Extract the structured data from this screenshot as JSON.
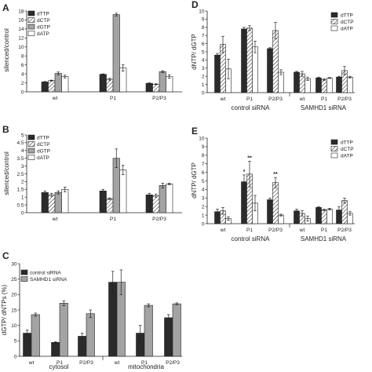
{
  "colors": {
    "dark": "#2b2b2b",
    "grey": "#a3a3a3",
    "white": "#ffffff",
    "stroke": "#222222"
  },
  "chart_data": [
    {
      "panel": "A",
      "type": "bar",
      "ylabel": "silenced/control",
      "categories": [
        "wt",
        "P1",
        "P2/P3"
      ],
      "ylim": [
        0,
        18
      ],
      "yticks": [
        0,
        2,
        4,
        6,
        8,
        10,
        12,
        14,
        16,
        18
      ],
      "legend_position": "top-left",
      "series": [
        {
          "name": "dTTP",
          "fill": "dark",
          "values": [
            2.2,
            3.9,
            1.9
          ],
          "errors": [
            0.1,
            0.1,
            0.1
          ]
        },
        {
          "name": "dCTP",
          "fill": "hatch",
          "values": [
            2.5,
            2.8,
            1.7
          ],
          "errors": [
            0.1,
            0.2,
            0.1
          ]
        },
        {
          "name": "dGTP",
          "fill": "grey",
          "values": [
            4.1,
            17.2,
            4.5
          ],
          "errors": [
            0.3,
            0.3,
            0.2
          ]
        },
        {
          "name": "dATP",
          "fill": "white",
          "values": [
            3.4,
            5.3,
            3.4
          ],
          "errors": [
            0.3,
            0.7,
            0.4
          ]
        }
      ]
    },
    {
      "panel": "B",
      "type": "bar",
      "ylabel": "silenced/control",
      "categories": [
        "wt",
        "P1",
        "P2/P3"
      ],
      "ylim": [
        0,
        5
      ],
      "yticks": [
        0,
        0.5,
        1,
        1.5,
        2,
        2.5,
        3,
        3.5,
        4,
        4.5,
        5
      ],
      "legend_position": "top-left",
      "series": [
        {
          "name": "dTTP",
          "fill": "dark",
          "values": [
            1.3,
            1.4,
            1.15
          ],
          "errors": [
            0.1,
            0.1,
            0.1
          ]
        },
        {
          "name": "dCTP",
          "fill": "hatch",
          "values": [
            1.15,
            0.9,
            1.1
          ],
          "errors": [
            0.1,
            0.05,
            0.1
          ]
        },
        {
          "name": "dGTP",
          "fill": "grey",
          "values": [
            1.3,
            3.5,
            1.75
          ],
          "errors": [
            0.1,
            0.6,
            0.15
          ]
        },
        {
          "name": "dATP",
          "fill": "white",
          "values": [
            1.5,
            2.75,
            1.85
          ],
          "errors": [
            0.15,
            0.3,
            0.05
          ]
        }
      ]
    },
    {
      "panel": "C",
      "type": "bar",
      "ylabel": "dGTP/ dNTPs (%)",
      "categories": [
        "wt",
        "P1",
        "P2/P3",
        "wt",
        "P1",
        "P2/P3"
      ],
      "groups": [
        "cytosol",
        "mitochondria"
      ],
      "ylim": [
        0,
        30
      ],
      "yticks": [
        0,
        5,
        10,
        15,
        20,
        25,
        30
      ],
      "legend_position": "top-left",
      "series": [
        {
          "name": "control siRNA",
          "fill": "dark",
          "values": [
            7.5,
            4.5,
            6.5,
            24,
            7.5,
            12.5
          ],
          "errors": [
            1.0,
            0.2,
            1.0,
            3.5,
            2.5,
            1.0
          ]
        },
        {
          "name": "SAMHD1 siRNA",
          "fill": "grey",
          "values": [
            13.5,
            17.2,
            13.8,
            24,
            16.5,
            17
          ],
          "errors": [
            0.5,
            0.8,
            1.2,
            4.0,
            0.5,
            0.3
          ]
        }
      ]
    },
    {
      "panel": "D",
      "type": "bar",
      "ylabel": "dNTP/ dGTP",
      "categories": [
        "wt",
        "P1",
        "P2/P3",
        "wt",
        "P1",
        "P2/P3"
      ],
      "groups": [
        "control siRNA",
        "SAMHD1 siRNA"
      ],
      "ylim": [
        0,
        10
      ],
      "yticks": [
        0,
        1,
        2,
        3,
        4,
        5,
        6,
        7,
        8,
        9,
        10
      ],
      "legend_position": "top-right",
      "series": [
        {
          "name": "dTTP",
          "fill": "dark",
          "values": [
            4.6,
            7.8,
            5.4,
            2.5,
            1.8,
            1.9
          ],
          "errors": [
            0.2,
            0.2,
            0.1,
            0.1,
            0.1,
            0.1
          ]
        },
        {
          "name": "dCTP",
          "fill": "hatch",
          "values": [
            5.9,
            7.9,
            7.6,
            2.3,
            1.6,
            2.7
          ],
          "errors": [
            1.0,
            0.3,
            1.0,
            0.3,
            0.1,
            0.5
          ]
        },
        {
          "name": "dATP",
          "fill": "white",
          "values": [
            2.9,
            5.6,
            2.5,
            1.7,
            1.8,
            1.9
          ],
          "errors": [
            1.2,
            0.7,
            0.3,
            0.2,
            0.05,
            0.1
          ]
        }
      ]
    },
    {
      "panel": "E",
      "type": "bar",
      "ylabel": "dNTP/ dGTP",
      "categories": [
        "wt",
        "P1",
        "P2/P3",
        "wt",
        "P1",
        "P2/P3"
      ],
      "groups": [
        "control siRNA",
        "SAMHD1 siRNA"
      ],
      "ylim": [
        0,
        10
      ],
      "yticks": [
        0,
        1,
        2,
        3,
        4,
        5,
        6,
        7,
        8,
        9,
        10
      ],
      "legend_position": "top-right",
      "significance": [
        {
          "category": 1,
          "series": 0,
          "label": "*"
        },
        {
          "category": 1,
          "series": 1,
          "label": "**"
        },
        {
          "category": 2,
          "series": 1,
          "label": "**"
        }
      ],
      "series": [
        {
          "name": "dTTP",
          "fill": "dark",
          "values": [
            1.4,
            4.9,
            2.8,
            1.5,
            1.9,
            1.6
          ],
          "errors": [
            0.3,
            0.8,
            0.2,
            0.2,
            0.1,
            0.4
          ]
        },
        {
          "name": "dCTP",
          "fill": "hatch",
          "values": [
            1.5,
            5.8,
            4.8,
            1.2,
            1.6,
            2.7
          ],
          "errors": [
            0.4,
            1.5,
            0.6,
            0.3,
            0.1,
            0.3
          ]
        },
        {
          "name": "dATP",
          "fill": "white",
          "values": [
            0.6,
            2.4,
            1.0,
            0.6,
            1.7,
            1.2
          ],
          "errors": [
            0.2,
            0.9,
            0.1,
            0.3,
            0.1,
            0.2
          ]
        }
      ]
    }
  ]
}
